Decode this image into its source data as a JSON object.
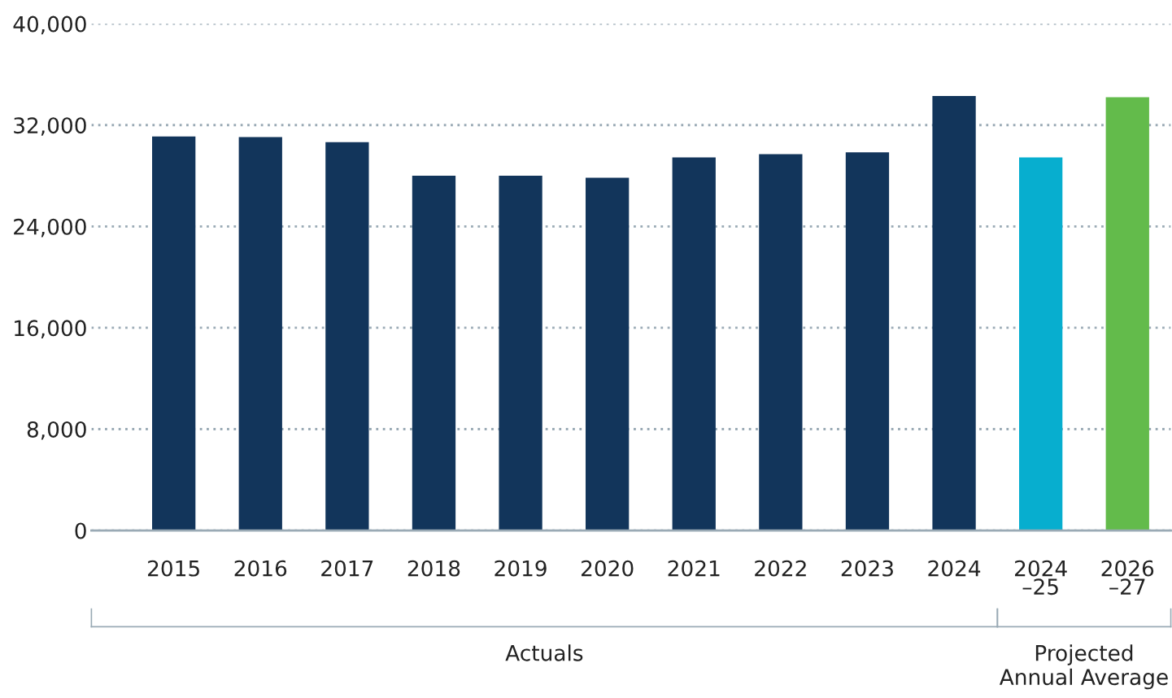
{
  "chart_data": {
    "type": "bar",
    "categories": [
      "2015",
      "2016",
      "2017",
      "2018",
      "2019",
      "2020",
      "2021",
      "2022",
      "2023",
      "2024",
      "2024\n–25",
      "2026\n–27"
    ],
    "values": [
      31100,
      31050,
      30650,
      28000,
      28000,
      27850,
      29450,
      29700,
      29850,
      34300,
      29450,
      34200
    ],
    "colors": [
      "#12355b",
      "#12355b",
      "#12355b",
      "#12355b",
      "#12355b",
      "#12355b",
      "#12355b",
      "#12355b",
      "#12355b",
      "#12355b",
      "#07aecf",
      "#63bb4b"
    ],
    "ylim": [
      0,
      40000
    ],
    "yticks": [
      {
        "value": 0,
        "label": "0"
      },
      {
        "value": 8000,
        "label": "8,000"
      },
      {
        "value": 16000,
        "label": "16,000"
      },
      {
        "value": 24000,
        "label": "24,000"
      },
      {
        "value": 32000,
        "label": "32,000"
      },
      {
        "value": 40000,
        "label": "40,000"
      }
    ],
    "grid": "y",
    "annotations": [
      "Actuals",
      "Projected\nAnnual Average"
    ]
  }
}
